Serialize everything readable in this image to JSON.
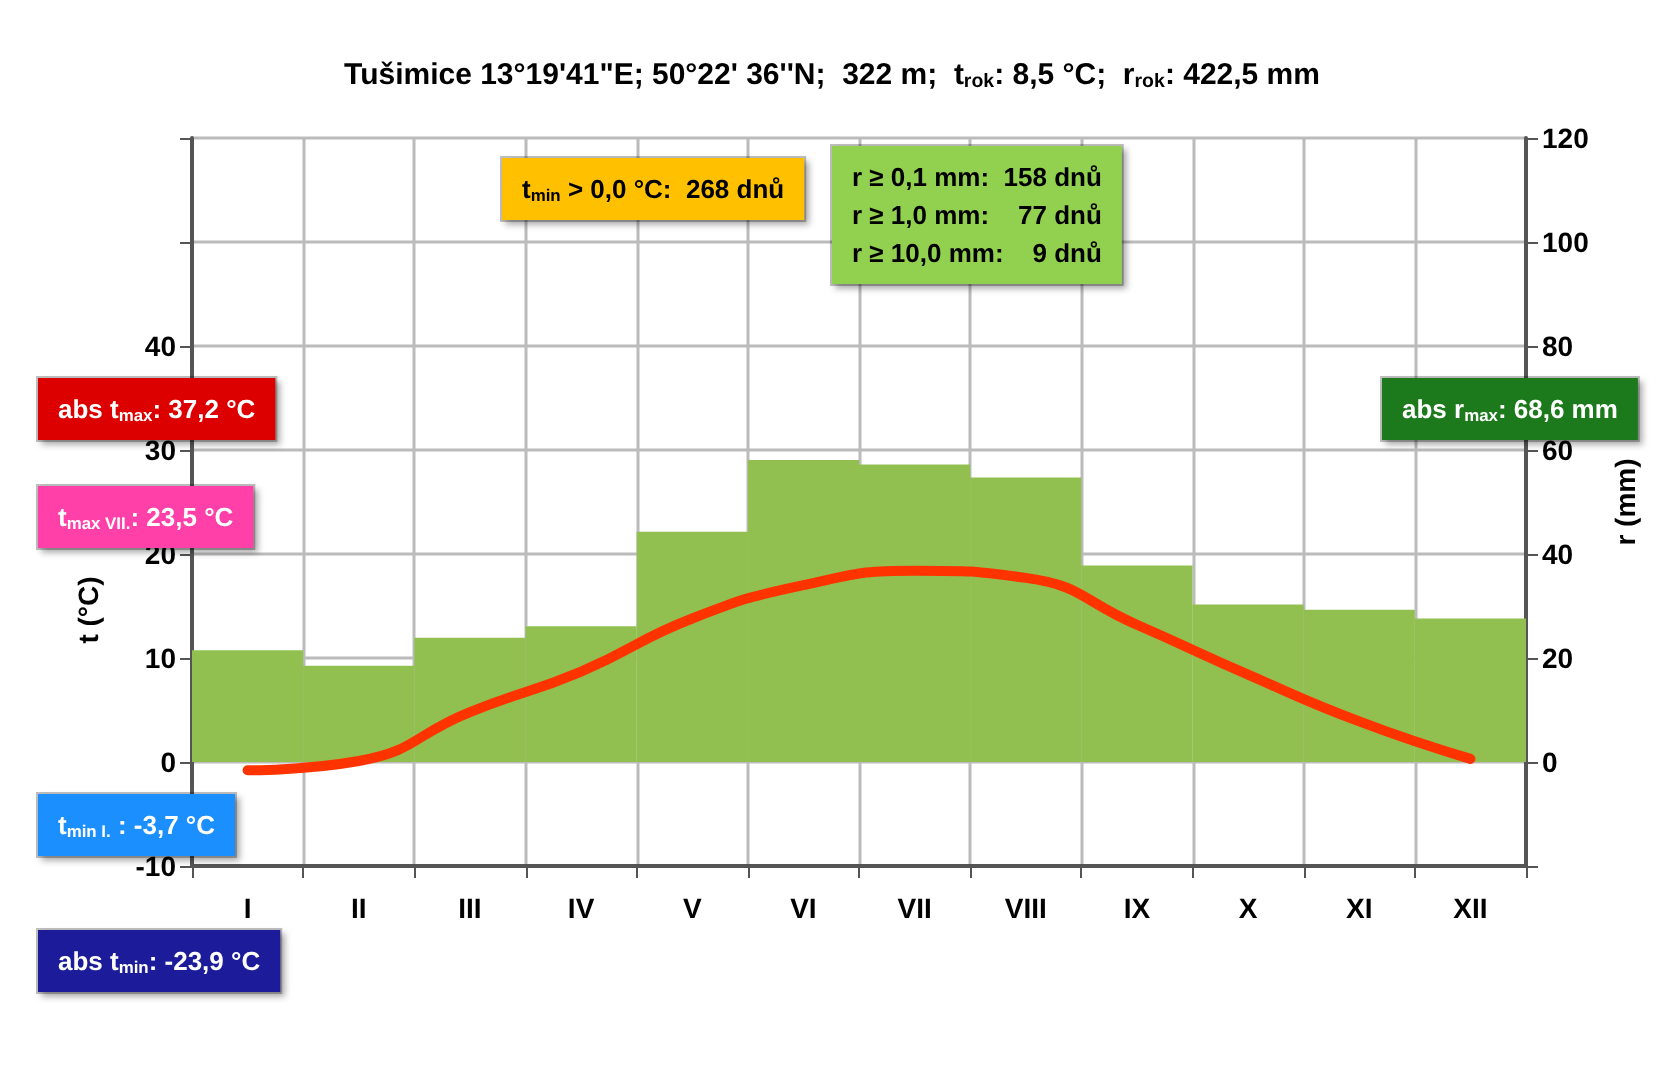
{
  "chart_data": {
    "type": "bar",
    "title": "Tušimice 13°19'41\"E; 50°22' 36''N;  322 m;  t$_{rok}$: 8,5 °C;  r$_{rok}$: 422,5 mm",
    "ylabel": "t (°C)",
    "y2label": "r (mm)",
    "categories": [
      "I",
      "II",
      "III",
      "IV",
      "V",
      "VI",
      "VII",
      "VIII",
      "IX",
      "X",
      "XI",
      "XII"
    ],
    "series": [
      {
        "axis": "y2",
        "color": "#92c050",
        "values": [
          21.5,
          18.5,
          23.9,
          26.1,
          44.3,
          58.1,
          57.2,
          54.7,
          37.8,
          30.3,
          29.3,
          27.6
        ]
      },
      {
        "type": "line",
        "axis": "y",
        "color": "#ff3300",
        "values": [
          -0.8,
          0.1,
          4.8,
          8.7,
          13.8,
          17.0,
          18.4,
          17.7,
          13.2,
          8.4,
          3.9,
          0.3
        ]
      }
    ],
    "ylim": [
      -10,
      60
    ],
    "yticks": [
      -10,
      0,
      10,
      20,
      30,
      40,
      {
        "value": 50,
        "label": null
      },
      {
        "value": 60,
        "label": null
      }
    ],
    "y2lim": [
      -20,
      120
    ],
    "y2ticks": [
      {
        "value": -20,
        "label": null
      },
      0,
      20,
      40,
      60,
      80,
      100,
      120
    ],
    "grid": true,
    "marker": "none",
    "line_style": "solid",
    "annotations": [
      "t$_{min}$ > 0,0 °C:  268 dnů",
      "r ≥ 0,1 mm:  158 dnů\nr ≥ 1,0 mm:    77 dnů\nr ≥ 10,0 mm:    9 dnů",
      "abs t$_{max}$: 37,2 °C",
      "t$_{max VII.}$: 23,5 °C",
      "t$_{min I.}$ : -3,7 °C",
      "abs t$_{min}$: -23,9 °C",
      "abs r$_{max}$: 68,6 mm"
    ]
  }
}
